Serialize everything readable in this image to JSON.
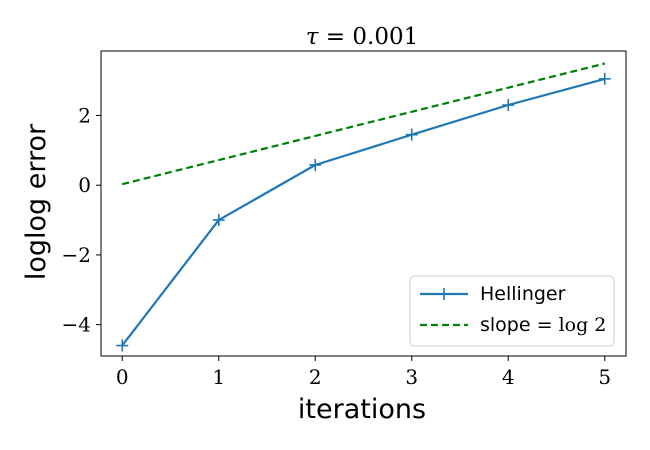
{
  "chart_data": {
    "type": "line",
    "title_symbol": "τ",
    "title_rest": " = 0.001",
    "xlabel": "iterations",
    "ylabel": "loglog error",
    "xlim": [
      -0.22,
      5.22
    ],
    "ylim": [
      -4.9,
      3.85
    ],
    "xticks": [
      0,
      1,
      2,
      3,
      4,
      5
    ],
    "yticks": [
      -4,
      -2,
      0,
      2
    ],
    "ytick_labels": [
      "−4",
      "−2",
      "0",
      "2"
    ],
    "grid": false,
    "legend_position": "bottom-right",
    "series": [
      {
        "name": "Hellinger",
        "style": "solid",
        "marker": "plus",
        "color": "#1f77b4",
        "x": [
          0,
          1,
          2,
          3,
          4,
          5
        ],
        "y": [
          -4.6,
          -1.0,
          0.58,
          1.45,
          2.3,
          3.05
        ]
      },
      {
        "name": "slope = log 2",
        "name_text": "slope = ",
        "name_math": "log 2",
        "style": "dashed",
        "color": "#008000",
        "x": [
          0,
          5
        ],
        "y": [
          0.03,
          3.49
        ]
      }
    ]
  }
}
